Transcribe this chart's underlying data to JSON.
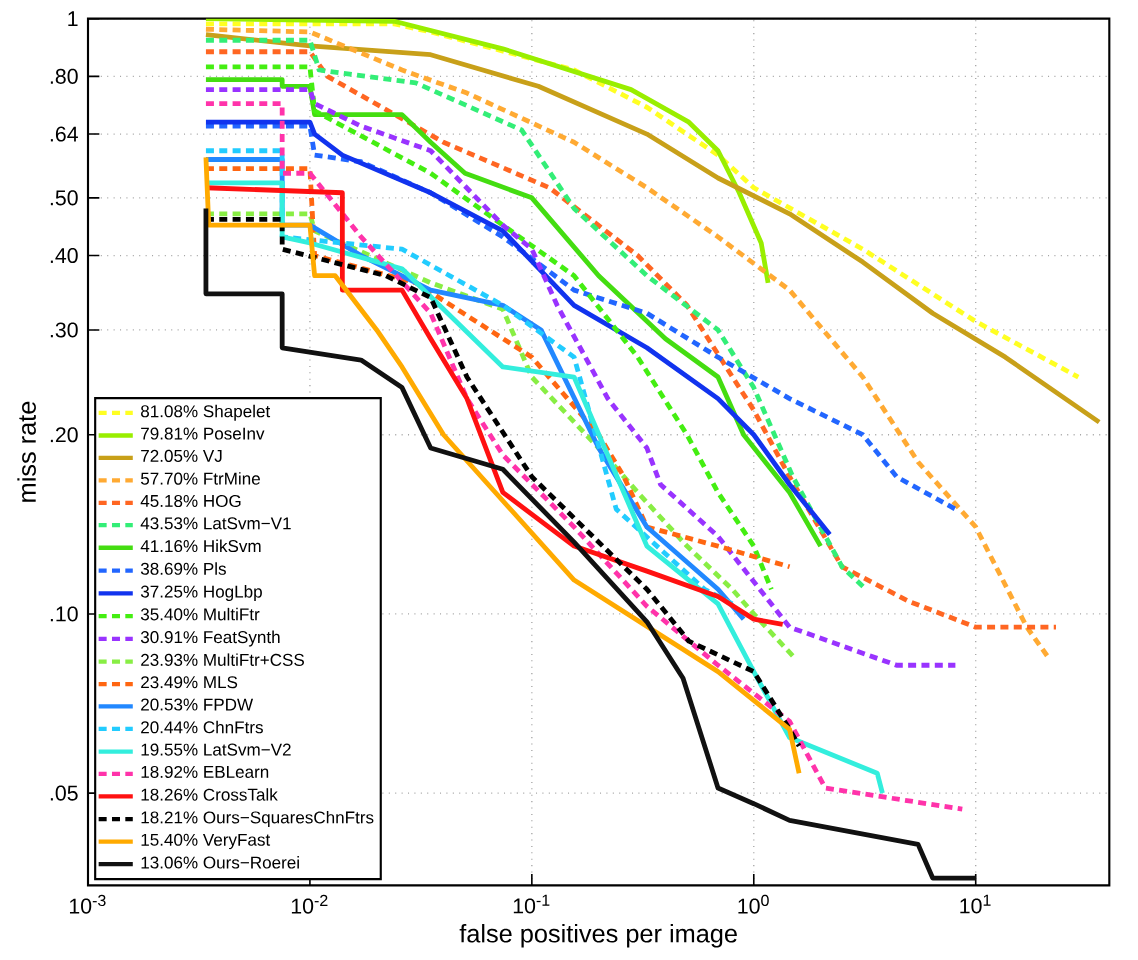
{
  "chart_data": {
    "type": "line",
    "xlabel": "false positives per image",
    "ylabel": "miss rate",
    "log": "xy",
    "grid": true,
    "legend": "bottom left",
    "xlim": [
      0.001,
      40
    ],
    "ylim": [
      0.035,
      1
    ],
    "xticks": [
      {
        "value": 0.001,
        "label": "10$^{-3}$"
      },
      {
        "value": 0.01,
        "label": "10$^{-2}$"
      },
      {
        "value": 0.1,
        "label": "10$^{-1}$"
      },
      {
        "value": 1,
        "label": "10$^{0}$"
      },
      {
        "value": 10,
        "label": "10$^{1}$"
      }
    ],
    "yticks": [
      {
        "value": 0.05,
        "label": ".05"
      },
      {
        "value": 0.1,
        "label": ".10"
      },
      {
        "value": 0.2,
        "label": ".20"
      },
      {
        "value": 0.3,
        "label": ".30"
      },
      {
        "value": 0.4,
        "label": ".40"
      },
      {
        "value": 0.5,
        "label": ".50"
      },
      {
        "value": 0.64,
        "label": ".64"
      },
      {
        "value": 0.8,
        "label": ".80"
      },
      1
    ],
    "series": [
      {
        "name": "81.08% Shapelet",
        "color": "#ffff22",
        "line_style": "dashed",
        "x": [
          0.0034,
          0.024,
          0.035,
          0.155,
          0.33,
          0.69,
          1,
          3.1,
          10,
          29
        ],
        "values": [
          0.98,
          0.98,
          0.95,
          0.82,
          0.71,
          0.59,
          0.52,
          0.41,
          0.31,
          0.25
        ]
      },
      {
        "name": "79.81% PoseInv",
        "color": "#99ee00",
        "line_style": "solid",
        "x": [
          0.0034,
          0.024,
          0.074,
          0.28,
          0.51,
          0.69,
          0.86,
          1.08,
          1.16
        ],
        "values": [
          1.0,
          0.99,
          0.89,
          0.76,
          0.67,
          0.6,
          0.51,
          0.42,
          0.36
        ]
      },
      {
        "name": "72.05% VJ",
        "color": "#c8a019",
        "line_style": "solid",
        "x": [
          0.0034,
          0.01,
          0.035,
          0.107,
          0.33,
          0.69,
          1.45,
          3.1,
          6.4,
          13.6,
          36
        ],
        "values": [
          0.94,
          0.9,
          0.87,
          0.77,
          0.64,
          0.54,
          0.47,
          0.39,
          0.32,
          0.27,
          0.21
        ]
      },
      {
        "name": "57.70% FtrMine",
        "color": "#ffaa33",
        "line_style": "dashed",
        "x": [
          0.0034,
          0.01,
          0.026,
          0.051,
          0.155,
          0.33,
          0.69,
          1.45,
          3.1,
          5.5,
          10,
          17,
          21
        ],
        "values": [
          0.96,
          0.95,
          0.82,
          0.75,
          0.62,
          0.52,
          0.43,
          0.35,
          0.25,
          0.18,
          0.14,
          0.095,
          0.085
        ]
      },
      {
        "name": "45.18% HOG",
        "color": "#ff6622",
        "line_style": "dashed",
        "x": [
          0.0034,
          0.01,
          0.012,
          0.04,
          0.12,
          0.3,
          0.5,
          0.75,
          1.0,
          1.45,
          2.5,
          5,
          10,
          23
        ],
        "values": [
          0.88,
          0.88,
          0.8,
          0.62,
          0.52,
          0.4,
          0.33,
          0.26,
          0.22,
          0.17,
          0.12,
          0.105,
          0.095,
          0.095
        ]
      },
      {
        "name": "43.53% LatSvm−V1",
        "color": "#33ee77",
        "line_style": "dashed",
        "x": [
          0.0034,
          0.01,
          0.011,
          0.03,
          0.09,
          0.155,
          0.33,
          0.69,
          1.0,
          1.5,
          2.5,
          3.2
        ],
        "values": [
          0.92,
          0.92,
          0.82,
          0.78,
          0.65,
          0.48,
          0.37,
          0.3,
          0.24,
          0.17,
          0.12,
          0.11
        ]
      },
      {
        "name": "41.16% HikSvm",
        "color": "#44dd11",
        "line_style": "solid",
        "x": [
          0.0034,
          0.0075,
          0.0075,
          0.01,
          0.0105,
          0.026,
          0.035,
          0.05,
          0.1,
          0.2,
          0.4,
          0.69,
          0.9,
          1.45,
          2.0
        ],
        "values": [
          0.79,
          0.79,
          0.77,
          0.77,
          0.69,
          0.69,
          0.62,
          0.55,
          0.5,
          0.37,
          0.29,
          0.25,
          0.2,
          0.16,
          0.13
        ]
      },
      {
        "name": "38.69% Pls",
        "color": "#2266ff",
        "line_style": "dashed",
        "x": [
          0.0034,
          0.01,
          0.0105,
          0.017,
          0.035,
          0.074,
          0.155,
          0.33,
          0.69,
          1.45,
          3.1,
          4.4,
          8.1
        ],
        "values": [
          0.66,
          0.66,
          0.59,
          0.575,
          0.51,
          0.43,
          0.35,
          0.32,
          0.27,
          0.23,
          0.2,
          0.17,
          0.15
        ]
      },
      {
        "name": "37.25% HogLbp",
        "color": "#1133ee",
        "line_style": "solid",
        "x": [
          0.0034,
          0.01,
          0.0105,
          0.014,
          0.035,
          0.074,
          0.155,
          0.33,
          0.69,
          1.0,
          1.45,
          2.2
        ],
        "values": [
          0.67,
          0.67,
          0.64,
          0.59,
          0.51,
          0.44,
          0.33,
          0.28,
          0.23,
          0.2,
          0.165,
          0.136
        ]
      },
      {
        "name": "35.40% MultiFtr",
        "color": "#44ee11",
        "line_style": "dashed",
        "x": [
          0.0034,
          0.01,
          0.0105,
          0.035,
          0.074,
          0.155,
          0.3,
          0.5,
          0.69,
          1.0,
          1.2
        ],
        "values": [
          0.83,
          0.83,
          0.7,
          0.55,
          0.45,
          0.37,
          0.27,
          0.2,
          0.16,
          0.13,
          0.11
        ]
      },
      {
        "name": "30.91% FeatSynth",
        "color": "#9933ff",
        "line_style": "dashed",
        "x": [
          0.0034,
          0.01,
          0.0105,
          0.017,
          0.035,
          0.074,
          0.1,
          0.13,
          0.22,
          0.33,
          0.38,
          0.69,
          1.45,
          4.4,
          8.1
        ],
        "values": [
          0.76,
          0.76,
          0.72,
          0.66,
          0.6,
          0.45,
          0.41,
          0.33,
          0.23,
          0.19,
          0.165,
          0.135,
          0.095,
          0.082,
          0.082
        ]
      },
      {
        "name": "23.93% MultiFtr+CSS",
        "color": "#88ee44",
        "line_style": "dashed",
        "x": [
          0.0034,
          0.01,
          0.0105,
          0.035,
          0.074,
          0.1,
          0.2,
          0.3,
          0.5,
          0.8,
          1.0,
          1.3,
          1.5
        ],
        "values": [
          0.47,
          0.47,
          0.44,
          0.36,
          0.325,
          0.25,
          0.19,
          0.16,
          0.13,
          0.11,
          0.1,
          0.09,
          0.085
        ]
      },
      {
        "name": "23.49% MLS",
        "color": "#ff6611",
        "line_style": "dashed",
        "x": [
          0.0034,
          0.01,
          0.0105,
          0.03,
          0.1,
          0.2,
          0.26,
          0.33,
          0.69,
          1.45
        ],
        "values": [
          0.56,
          0.56,
          0.4,
          0.36,
          0.27,
          0.2,
          0.17,
          0.14,
          0.13,
          0.12
        ]
      },
      {
        "name": "20.53% FPDW",
        "color": "#2288ff",
        "line_style": "solid",
        "x": [
          0.0034,
          0.0075,
          0.0075,
          0.01,
          0.017,
          0.035,
          0.074,
          0.11,
          0.2,
          0.33,
          0.69,
          0.9
        ],
        "values": [
          0.58,
          0.58,
          0.45,
          0.45,
          0.4,
          0.35,
          0.33,
          0.3,
          0.19,
          0.14,
          0.11,
          0.098
        ]
      },
      {
        "name": "20.44% ChnFtrs",
        "color": "#22ccff",
        "line_style": "dashed",
        "x": [
          0.0034,
          0.0075,
          0.0075,
          0.026,
          0.074,
          0.155,
          0.24,
          0.6,
          0.8
        ],
        "values": [
          0.6,
          0.6,
          0.43,
          0.41,
          0.33,
          0.27,
          0.15,
          0.11,
          0.104
        ]
      },
      {
        "name": "19.55% LatSvm−V2",
        "color": "#33eedd",
        "line_style": "solid",
        "x": [
          0.0034,
          0.0075,
          0.0075,
          0.01,
          0.026,
          0.074,
          0.155,
          0.33,
          0.69,
          1.0,
          1.45,
          3.6,
          3.8
        ],
        "values": [
          0.53,
          0.53,
          0.43,
          0.42,
          0.38,
          0.26,
          0.25,
          0.13,
          0.104,
          0.08,
          0.062,
          0.054,
          0.05
        ]
      },
      {
        "name": "18.92% EBLearn",
        "color": "#ff33aa",
        "line_style": "dashed",
        "x": [
          0.0034,
          0.0075,
          0.0075,
          0.01,
          0.017,
          0.035,
          0.051,
          0.074,
          0.155,
          0.33,
          0.69,
          1.45,
          2.1,
          8.7
        ],
        "values": [
          0.72,
          0.72,
          0.55,
          0.55,
          0.43,
          0.32,
          0.23,
          0.185,
          0.14,
          0.103,
          0.082,
          0.066,
          0.051,
          0.047
        ]
      },
      {
        "name": "18.26% CrossTalk",
        "color": "#ff1111",
        "line_style": "solid",
        "x": [
          0.0034,
          0.014,
          0.014,
          0.026,
          0.035,
          0.051,
          0.074,
          0.155,
          0.33,
          0.69,
          1.0,
          1.35
        ],
        "values": [
          0.52,
          0.51,
          0.35,
          0.35,
          0.29,
          0.23,
          0.16,
          0.13,
          0.118,
          0.107,
          0.098,
          0.096
        ]
      },
      {
        "name": "18.21% Ours−SquaresChnFtrs",
        "color": "#000000",
        "line_style": "dashed",
        "x": [
          0.0034,
          0.0075,
          0.0075,
          0.022,
          0.035,
          0.051,
          0.1,
          0.33,
          0.51,
          1.0,
          1.45,
          1.6
        ],
        "values": [
          0.46,
          0.46,
          0.41,
          0.37,
          0.34,
          0.25,
          0.17,
          0.11,
          0.09,
          0.08,
          0.064,
          0.06
        ]
      },
      {
        "name": "15.40% VeryFast",
        "color": "#ffaa00",
        "line_style": "solid",
        "x": [
          0.0034,
          0.0035,
          0.01,
          0.0105,
          0.013,
          0.02,
          0.026,
          0.04,
          0.155,
          0.69,
          1.45,
          1.6
        ],
        "values": [
          0.585,
          0.45,
          0.45,
          0.37,
          0.37,
          0.3,
          0.26,
          0.2,
          0.114,
          0.08,
          0.064,
          0.054
        ]
      },
      {
        "name": "13.06% Ours−Roerei",
        "color": "#111111",
        "line_style": "solid",
        "x": [
          0.0034,
          0.0034,
          0.0075,
          0.0075,
          0.017,
          0.026,
          0.035,
          0.074,
          0.155,
          0.33,
          0.48,
          0.69,
          1.0,
          1.45,
          5.5,
          6.4,
          10
        ],
        "values": [
          0.48,
          0.345,
          0.345,
          0.28,
          0.267,
          0.24,
          0.19,
          0.175,
          0.132,
          0.097,
          0.078,
          0.051,
          0.048,
          0.045,
          0.041,
          0.036,
          0.036
        ]
      }
    ]
  }
}
